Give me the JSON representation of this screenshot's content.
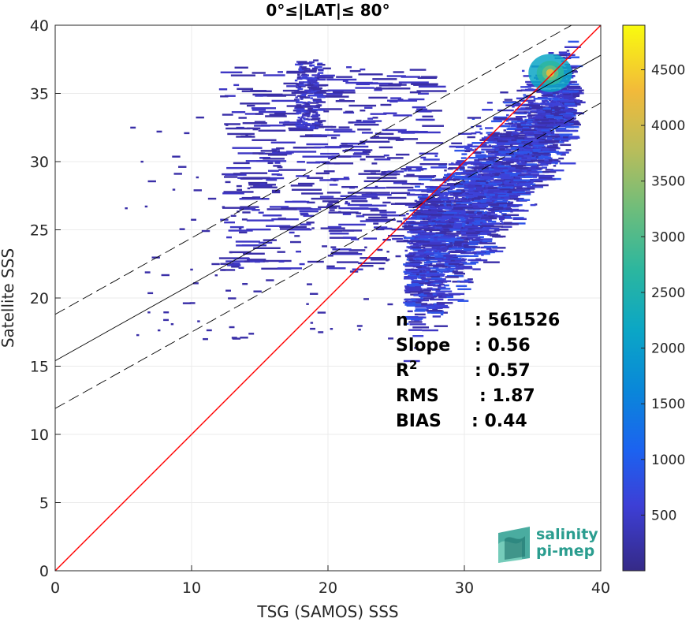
{
  "chart_data": {
    "type": "heatmap",
    "title": "0°≤|LAT|≤ 80°",
    "xlabel": "TSG (SAMOS) SSS",
    "ylabel": "Satellite SSS",
    "xlim": [
      0,
      40
    ],
    "ylim": [
      0,
      40
    ],
    "xticks": [
      "0",
      "10",
      "20",
      "30",
      "40"
    ],
    "yticks": [
      "0",
      "5",
      "10",
      "15",
      "20",
      "25",
      "30",
      "35",
      "40"
    ],
    "grid": true,
    "colorbar": {
      "range": [
        0,
        4900
      ],
      "ticks": [
        "500",
        "1000",
        "1500",
        "2000",
        "2500",
        "3000",
        "3500",
        "4000",
        "4500"
      ],
      "colormap": "parula"
    },
    "density_core": {
      "x": 36.3,
      "y": 36.5,
      "peak_count": 4900
    },
    "lines": [
      {
        "kind": "one-to-one",
        "color": "#ff0000",
        "x": [
          0,
          40
        ],
        "y": [
          0,
          40
        ]
      },
      {
        "kind": "regression",
        "color": "#000000",
        "style": "solid",
        "x": [
          0,
          40
        ],
        "y": [
          15.4,
          37.8
        ]
      },
      {
        "kind": "regression-upper",
        "color": "#000000",
        "style": "dashed",
        "x": [
          0,
          40
        ],
        "y": [
          18.8,
          41.2
        ]
      },
      {
        "kind": "regression-lower",
        "color": "#000000",
        "style": "dashed",
        "x": [
          0,
          40
        ],
        "y": [
          11.9,
          34.3
        ]
      }
    ],
    "stats": [
      {
        "label": "n",
        "value": ": 561526"
      },
      {
        "label": "Slope",
        "value": ": 0.56"
      },
      {
        "label": "R",
        "sup": "2",
        "value": ": 0.57"
      },
      {
        "label": "RMS",
        "value": ": 1.87"
      },
      {
        "label": "BIAS",
        "value": ": 0.44"
      }
    ]
  },
  "logo": {
    "line1": "salinity",
    "line2": "pi-mep",
    "color": "#2a9d8f"
  }
}
